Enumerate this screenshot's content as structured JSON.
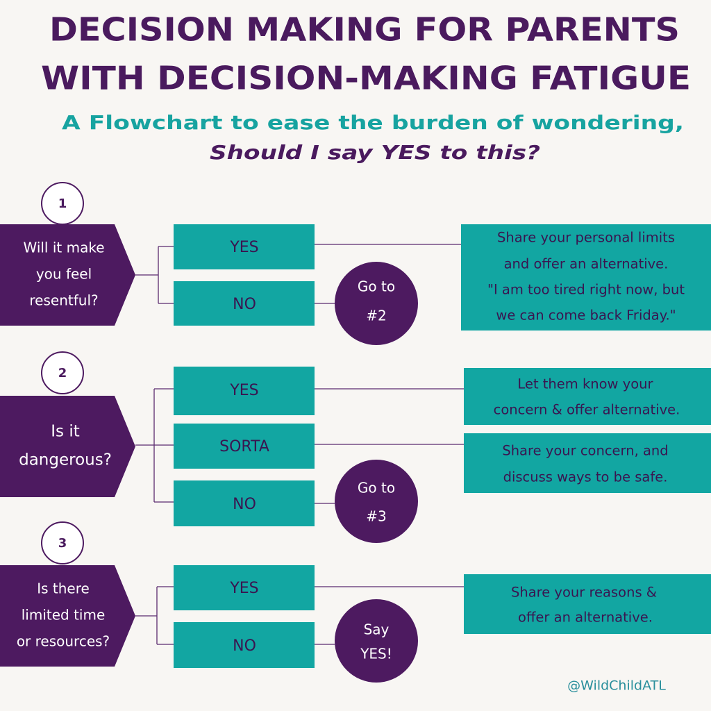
{
  "header": {
    "title_lines": [
      "DECISION MAKING FOR PARENTS",
      "WITH DECISION-MAKING FATIGUE"
    ],
    "subtitle": "A Flowchart to ease the burden of  wondering,",
    "question": "Should I say YES to this?"
  },
  "sections": [
    {
      "number": "1",
      "question_lines": [
        "Will it make",
        "you feel",
        "resentful?"
      ],
      "options": [
        "YES",
        "NO"
      ],
      "goto_lines": [
        "Go to",
        "#2"
      ],
      "results": [
        {
          "lines": [
            "Share  your personal limits",
            "and offer an alternative.",
            "\"I am too tired right now, but",
            "we can come back Friday.\""
          ]
        }
      ]
    },
    {
      "number": "2",
      "question_lines": [
        "Is it",
        "dangerous?"
      ],
      "options": [
        "YES",
        "SORTA",
        "NO"
      ],
      "goto_lines": [
        "Go to",
        "#3"
      ],
      "results": [
        {
          "lines": [
            "Let them know your",
            "concern & offer alternative."
          ]
        },
        {
          "lines": [
            "Share your concern, and",
            "discuss ways to be safe."
          ]
        }
      ]
    },
    {
      "number": "3",
      "question_lines": [
        "Is there",
        "limited time",
        "or resources?"
      ],
      "options": [
        "YES",
        "NO"
      ],
      "goto_lines": [
        "Say",
        "YES!"
      ],
      "results": [
        {
          "lines": [
            "Share your reasons &",
            "offer an alternative."
          ]
        }
      ]
    }
  ],
  "handle": "@WildChildATL"
}
